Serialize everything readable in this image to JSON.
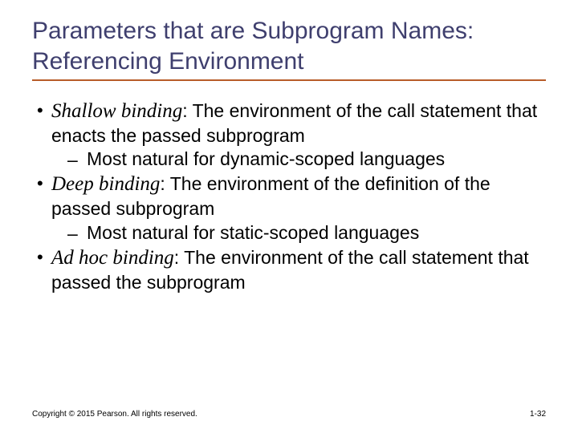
{
  "colors": {
    "title": "#3f3f6e",
    "underline": "#b85c28",
    "text": "#000000",
    "background": "#ffffff"
  },
  "typography": {
    "title_fontsize": 30,
    "body_fontsize": 23,
    "term_fontsize": 25,
    "footer_fontsize": 10,
    "title_font": "Verdana",
    "body_font": "Verdana",
    "term_font": "Georgia (italic serif)"
  },
  "title": "Parameters that are Subprogram Names: Referencing Environment",
  "bullets": [
    {
      "term": "Shallow binding",
      "desc": ": The environment of the call statement that enacts the passed subprogram",
      "sub": "Most natural for dynamic-scoped languages"
    },
    {
      "term": "Deep binding",
      "desc": ": The environment of the definition of the passed subprogram",
      "sub": "Most natural for static-scoped languages"
    },
    {
      "term": "Ad hoc binding",
      "desc": ": The environment of the call statement that passed the subprogram",
      "sub": null
    }
  ],
  "footer": {
    "copyright": "Copyright © 2015 Pearson. All rights reserved.",
    "page": "1-32"
  }
}
